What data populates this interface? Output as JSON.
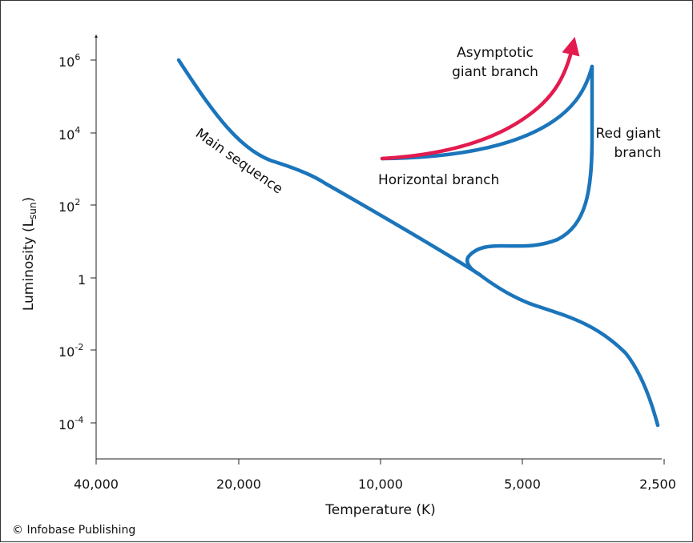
{
  "figure": {
    "credit": "© Infobase Publishing",
    "colors": {
      "track": "#1b75bb",
      "agb": "#e31b4e",
      "axis": "#222222",
      "text": "#111111"
    }
  },
  "chart_data": {
    "type": "line",
    "xlabel": "Temperature (K)",
    "ylabel": {
      "base": "Luminosity (L",
      "sub": "sun",
      "close": ")"
    },
    "x_scale": "log-reversed",
    "y_scale": "log",
    "x_ticks": [
      {
        "value": 40000,
        "label": "40,000"
      },
      {
        "value": 20000,
        "label": "20,000"
      },
      {
        "value": 10000,
        "label": "10,000"
      },
      {
        "value": 5000,
        "label": "5,000"
      },
      {
        "value": 2500,
        "label": "2,500"
      }
    ],
    "y_ticks": [
      {
        "value": 0.0001,
        "label_base": "10",
        "label_exp": "-4"
      },
      {
        "value": 0.01,
        "label_base": "10",
        "label_exp": "-2"
      },
      {
        "value": 1,
        "label_base": "1",
        "label_exp": ""
      },
      {
        "value": 100.0,
        "label_base": "10",
        "label_exp": "2"
      },
      {
        "value": 10000.0,
        "label_base": "10",
        "label_exp": "4"
      },
      {
        "value": 1000000.0,
        "label_base": "10",
        "label_exp": "6"
      }
    ],
    "annotations": {
      "main_sequence": "Main sequence",
      "horizontal_branch": "Horizontal branch",
      "red_giant_line1": "Red giant",
      "red_giant_line2": "branch",
      "agb_line1": "Asymptotic",
      "agb_line2": "giant branch"
    },
    "series": [
      {
        "name": "Main sequence",
        "points": [
          [
            28000,
            1000000.0
          ],
          [
            14000,
            300
          ],
          [
            10000,
            30
          ],
          [
            6700,
            2
          ],
          [
            5000,
            0.2
          ],
          [
            3700,
            0.02
          ],
          [
            3000,
            0.0015
          ],
          [
            2580,
            0.0001
          ]
        ]
      },
      {
        "name": "Red giant branch",
        "points": [
          [
            6700,
            2
          ],
          [
            6400,
            2.5
          ],
          [
            6500,
            3
          ],
          [
            5600,
            5
          ],
          [
            4700,
            6
          ],
          [
            3800,
            40
          ],
          [
            3300,
            1000.0
          ],
          [
            3300,
            500000.0
          ],
          [
            3300,
            500000.0
          ]
        ]
      },
      {
        "name": "Horizontal branch",
        "points": [
          [
            10000,
            2000
          ],
          [
            7000,
            3000
          ],
          [
            5000,
            8000
          ],
          [
            4000,
            30000
          ],
          [
            3400,
            200000.0
          ],
          [
            3300,
            500000.0
          ]
        ]
      },
      {
        "name": "Asymptotic giant branch",
        "points": [
          [
            10000,
            2000
          ],
          [
            7000,
            3500
          ],
          [
            5000,
            15000
          ],
          [
            4100,
            100000.0
          ],
          [
            3800,
            1000000.0
          ],
          [
            3700,
            2500000.0
          ]
        ]
      }
    ]
  }
}
